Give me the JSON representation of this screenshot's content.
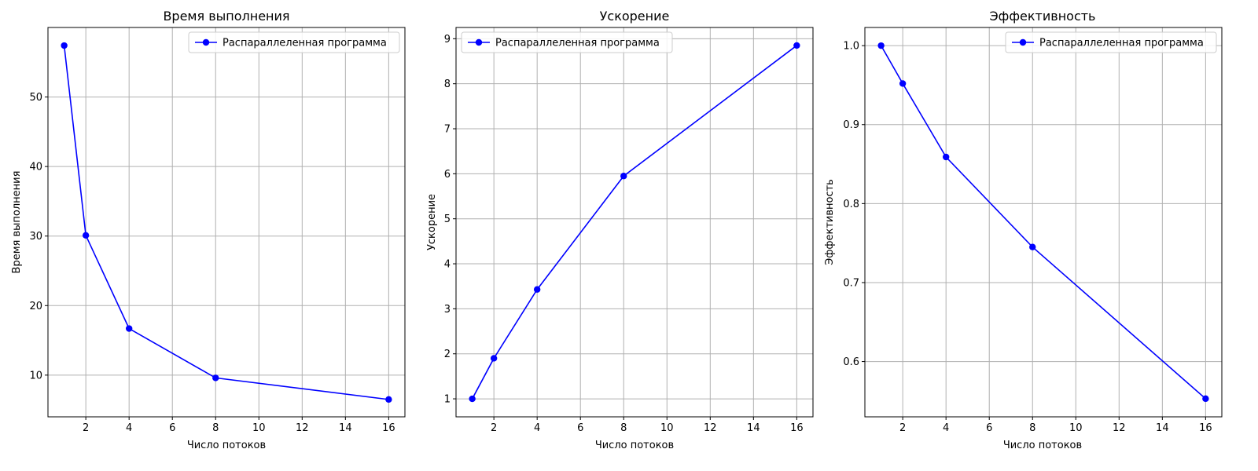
{
  "chart_data": [
    {
      "type": "line",
      "title": "Время выполнения",
      "xlabel": "Число потоков",
      "ylabel": "Время выполнения",
      "x": [
        1,
        2,
        4,
        8,
        16
      ],
      "series": [
        {
          "name": "Распараллеленная программа",
          "values": [
            57.4,
            30.1,
            16.7,
            9.6,
            6.5
          ],
          "color": "#0000ff"
        }
      ],
      "xlim": [
        0.25,
        16.75
      ],
      "ylim": [
        4.0,
        60.0
      ],
      "xticks": [
        2,
        4,
        6,
        8,
        10,
        12,
        14,
        16
      ],
      "yticks": [
        10,
        20,
        30,
        40,
        50
      ],
      "tick_decimals": 0,
      "grid": true,
      "legend": "upper-right"
    },
    {
      "type": "line",
      "title": "Ускорение",
      "xlabel": "Число потоков",
      "ylabel": "Ускорение",
      "x": [
        1,
        2,
        4,
        8,
        16
      ],
      "series": [
        {
          "name": "Распараллеленная программа",
          "values": [
            1.0,
            1.9,
            3.43,
            5.95,
            8.85
          ],
          "color": "#0000ff"
        }
      ],
      "xlim": [
        0.25,
        16.75
      ],
      "ylim": [
        0.6,
        9.25
      ],
      "xticks": [
        2,
        4,
        6,
        8,
        10,
        12,
        14,
        16
      ],
      "yticks": [
        1,
        2,
        3,
        4,
        5,
        6,
        7,
        8,
        9
      ],
      "tick_decimals": 0,
      "grid": true,
      "legend": "upper-left"
    },
    {
      "type": "line",
      "title": "Эффективность",
      "xlabel": "Число потоков",
      "ylabel": "Эффективность",
      "x": [
        1,
        2,
        4,
        8,
        16
      ],
      "series": [
        {
          "name": "Распараллеленная программа",
          "values": [
            1.0,
            0.952,
            0.859,
            0.745,
            0.553
          ],
          "color": "#0000ff"
        }
      ],
      "xlim": [
        0.25,
        16.75
      ],
      "ylim": [
        0.53,
        1.023
      ],
      "xticks": [
        2,
        4,
        6,
        8,
        10,
        12,
        14,
        16
      ],
      "yticks": [
        0.6,
        0.7,
        0.8,
        0.9,
        1.0
      ],
      "tick_decimals": 1,
      "grid": true,
      "legend": "upper-right"
    }
  ]
}
